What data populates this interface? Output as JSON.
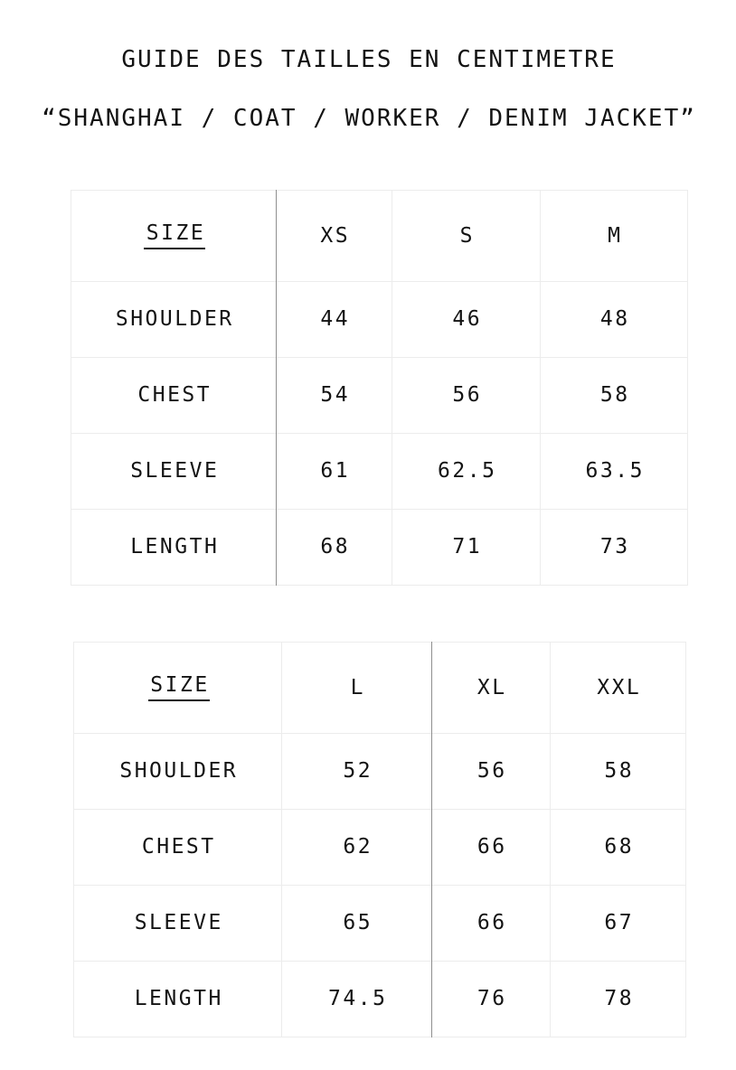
{
  "header": {
    "title": "GUIDE DES TAILLES EN CENTIMETRE",
    "subtitle": "“SHANGHAI / COAT / WORKER / DENIM JACKET”"
  },
  "tables": [
    {
      "header": {
        "label": "SIZE",
        "columns": [
          "XS",
          "S",
          "M"
        ]
      },
      "rows": [
        {
          "label": "SHOULDER",
          "values": [
            "44",
            "46",
            "48"
          ]
        },
        {
          "label": "CHEST",
          "values": [
            "54",
            "56",
            "58"
          ]
        },
        {
          "label": "SLEEVE",
          "values": [
            "61",
            "62.5",
            "63.5"
          ]
        },
        {
          "label": "LENGTH",
          "values": [
            "68",
            "71",
            "73"
          ]
        }
      ]
    },
    {
      "header": {
        "label": "SIZE",
        "columns": [
          "L",
          "XL",
          "XXL"
        ]
      },
      "rows": [
        {
          "label": "SHOULDER",
          "values": [
            "52",
            "56",
            "58"
          ]
        },
        {
          "label": "CHEST",
          "values": [
            "62",
            "66",
            "68"
          ]
        },
        {
          "label": "SLEEVE",
          "values": [
            "65",
            "66",
            "67"
          ]
        },
        {
          "label": "LENGTH",
          "values": [
            "74.5",
            "76",
            "78"
          ]
        }
      ]
    }
  ],
  "colors": {
    "background": "#ffffff",
    "text": "#131313",
    "border_light": "#ececec",
    "border_dark": "#8f8f8f"
  }
}
